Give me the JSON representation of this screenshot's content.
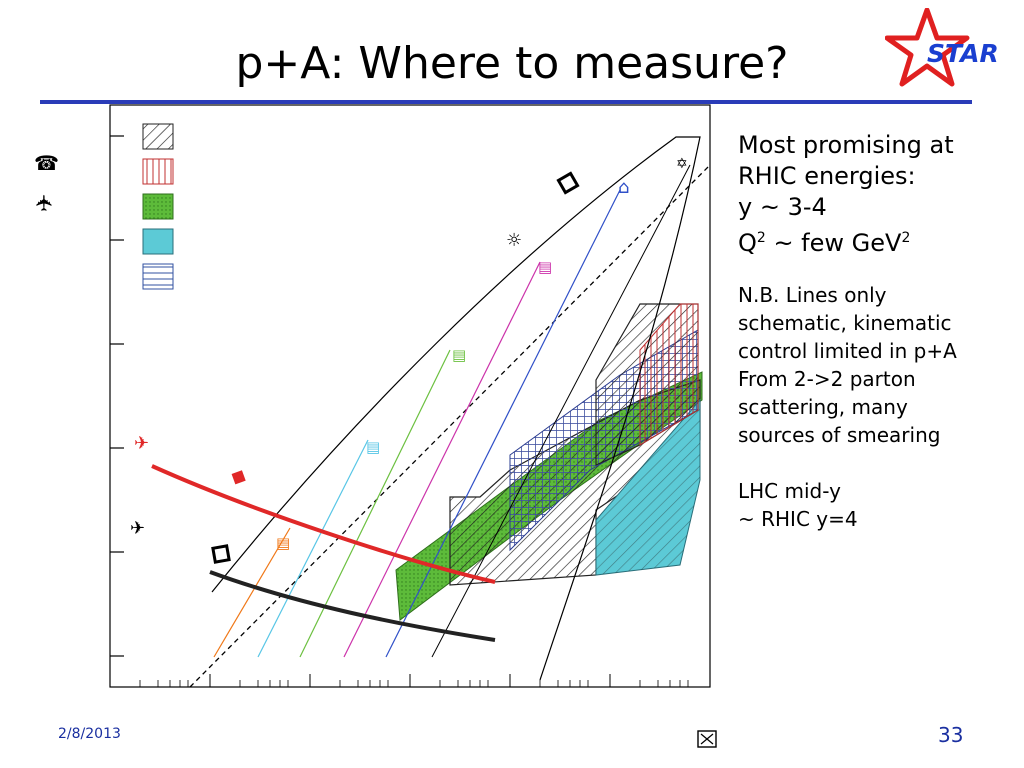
{
  "slide": {
    "title": "p+A: Where to measure?",
    "logo_text": "STAR",
    "date": "2/8/2013",
    "page_number": "33"
  },
  "notes": {
    "heading_lines": [
      "Most promising at",
      "RHIC energies:",
      "y ~ 3-4",
      "Q",
      "2",
      " ~ few GeV",
      "2"
    ],
    "nb_lines": [
      "N.B. Lines only",
      "schematic, kinematic",
      "control limited in p+A",
      "From 2->2 parton",
      "scattering, many",
      "sources of smearing"
    ],
    "lhc_lines": [
      "LHC mid-y",
      "~ RHIC y=4"
    ]
  },
  "colors": {
    "accent_rule": "#2a3cb8",
    "footer_text": "#1a2fa0",
    "logo_red": "#e02020",
    "logo_blue": "#1a3fd0",
    "red_curve": "#e02828",
    "black_curve": "#222222",
    "green_fill": "#5dbb3a",
    "cyan_fill": "#5ccad6",
    "orange_line": "#f07818",
    "cyan_line": "#58c6e6",
    "green_line": "#6cc040",
    "magenta_line": "#cc33aa",
    "blue_line": "#3050c8"
  },
  "chart_data": {
    "type": "scatter",
    "title": "",
    "xlabel": "",
    "ylabel": "",
    "xscale": "log",
    "yscale": "log",
    "grid": false,
    "legend": [
      "hatched-diagonal",
      "hatched-vertical-red",
      "green-dotted",
      "cyan",
      "hatched-horizontal-blue"
    ],
    "series": [
      {
        "style": "kinematic-limit-boundary",
        "color": "#000000"
      },
      {
        "style": "dashed-diagonal",
        "color": "#000000"
      },
      {
        "style": "rapidity-line",
        "color": "#f07818"
      },
      {
        "style": "rapidity-line",
        "color": "#58c6e6"
      },
      {
        "style": "rapidity-line",
        "color": "#6cc040"
      },
      {
        "style": "rapidity-line",
        "color": "#cc33aa"
      },
      {
        "style": "rapidity-line",
        "color": "#3050c8"
      },
      {
        "style": "saturation-scale-curve",
        "color": "#e02828"
      },
      {
        "style": "saturation-scale-curve",
        "color": "#222222"
      }
    ]
  }
}
